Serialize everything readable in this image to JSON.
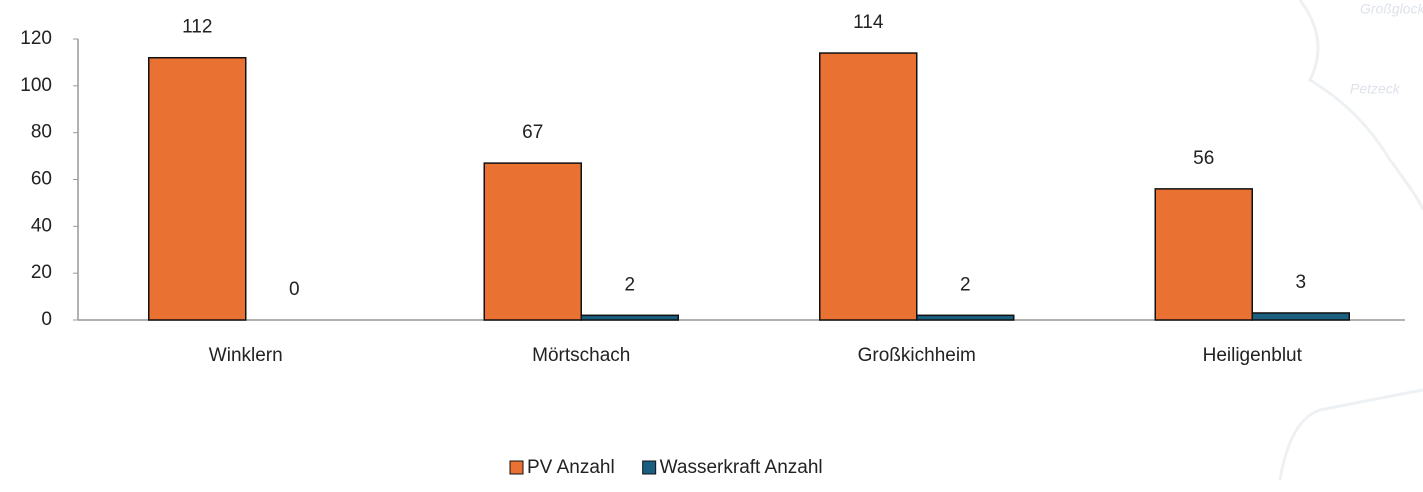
{
  "chart_data": {
    "type": "bar",
    "categories": [
      "Winklern",
      "Mörtschach",
      "Großkichheim",
      "Heiligenblut"
    ],
    "series": [
      {
        "name": "PV Anzahl",
        "color": "#e97132",
        "values": [
          112,
          67,
          114,
          56
        ]
      },
      {
        "name": "Wasserkraft Anzahl",
        "color": "#1b5f80",
        "values": [
          0,
          2,
          2,
          3
        ]
      }
    ],
    "ylim": [
      0,
      120
    ],
    "yticks": [
      0,
      20,
      40,
      60,
      80,
      100,
      120
    ],
    "grid": false,
    "legend": "bottom",
    "annotations": [
      "Großglock",
      "Petzeck"
    ]
  }
}
